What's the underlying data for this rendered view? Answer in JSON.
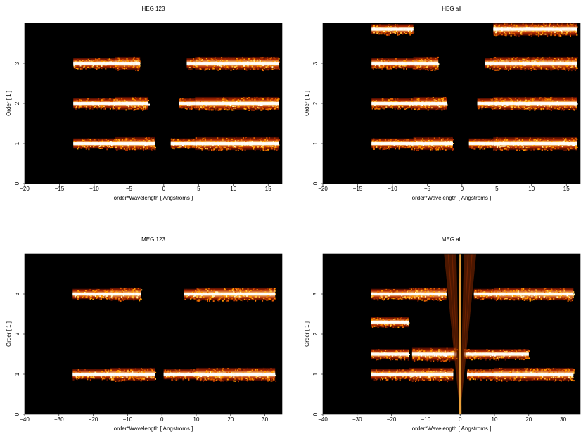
{
  "chart_data": [
    {
      "type": "heatmap",
      "title": "HEG 123",
      "xlabel": "order*Wavelength [ Angstroms ]",
      "ylabel": "Order [ 1 ]",
      "xlim": [
        -20,
        17
      ],
      "ylim": [
        0,
        4
      ],
      "xticks": [
        -20,
        -15,
        -10,
        -5,
        0,
        5,
        10,
        15
      ],
      "yticks": [
        0,
        1,
        2,
        3
      ],
      "bands": [
        {
          "order": 1,
          "segments": [
            [
              -13,
              -7
            ],
            [
              -7,
              -1.3
            ],
            [
              1,
              4.5
            ],
            [
              4.5,
              16.5
            ]
          ]
        },
        {
          "order": 2,
          "segments": [
            [
              -13,
              -7
            ],
            [
              -7,
              -2.2
            ],
            [
              2.2,
              4.5
            ],
            [
              4.5,
              16.5
            ]
          ]
        },
        {
          "order": 3,
          "segments": [
            [
              -13,
              -7
            ],
            [
              -7,
              -3.4
            ],
            [
              3.3,
              4.5
            ],
            [
              4.5,
              16.5
            ]
          ]
        }
      ]
    },
    {
      "type": "heatmap",
      "title": "HEG all",
      "xlabel": "order*Wavelength [ Angstroms ]",
      "ylabel": "Order [ 1 ]",
      "xlim": [
        -20,
        17
      ],
      "ylim": [
        0,
        4
      ],
      "xticks": [
        -20,
        -15,
        -10,
        -5,
        0,
        5,
        10,
        15
      ],
      "yticks": [
        0,
        1,
        2,
        3
      ],
      "bands": [
        {
          "order": 1,
          "segments": [
            [
              -13,
              -7
            ],
            [
              -7,
              -1.3
            ],
            [
              1,
              4.5
            ],
            [
              4.5,
              16.5
            ]
          ]
        },
        {
          "order": 2,
          "segments": [
            [
              -13,
              -7
            ],
            [
              -7,
              -2.2
            ],
            [
              2.2,
              4.5
            ],
            [
              4.5,
              16.5
            ]
          ]
        },
        {
          "order": 3,
          "segments": [
            [
              -13,
              -7
            ],
            [
              -7,
              -3.4
            ],
            [
              3.3,
              4.5
            ],
            [
              4.5,
              16.5
            ]
          ]
        },
        {
          "order": 3.85,
          "segments": [
            [
              -13,
              -7
            ],
            [
              4.5,
              16.5
            ]
          ]
        }
      ]
    },
    {
      "type": "heatmap",
      "title": "MEG 123",
      "xlabel": "order*Wavelength [ Angstroms ]",
      "ylabel": "Order [ 1 ]",
      "xlim": [
        -40,
        35
      ],
      "ylim": [
        0,
        4
      ],
      "xticks": [
        -40,
        -30,
        -20,
        -10,
        0,
        10,
        20,
        30
      ],
      "yticks": [
        0,
        1,
        2,
        3
      ],
      "bands": [
        {
          "order": 1,
          "segments": [
            [
              -26,
              -15
            ],
            [
              -15,
              -2
            ],
            [
              0.5,
              10
            ],
            [
              10,
              33
            ]
          ]
        },
        {
          "order": 3,
          "segments": [
            [
              -26,
              -15
            ],
            [
              -15,
              -6
            ],
            [
              6.5,
              10
            ],
            [
              10,
              33
            ]
          ]
        }
      ]
    },
    {
      "type": "heatmap",
      "title": "MEG all",
      "xlabel": "order*Wavelength [ Angstroms ]",
      "ylabel": "Order [ 1 ]",
      "xlim": [
        -40,
        35
      ],
      "ylim": [
        0,
        4
      ],
      "xticks": [
        -40,
        -30,
        -20,
        -10,
        0,
        10,
        20,
        30
      ],
      "yticks": [
        0,
        1,
        2,
        3
      ],
      "bands": [
        {
          "order": 1,
          "segments": [
            [
              -26,
              -15
            ],
            [
              -15,
              -2
            ],
            [
              2,
              10
            ],
            [
              10,
              33
            ]
          ]
        },
        {
          "order": 3,
          "segments": [
            [
              -26,
              -15
            ],
            [
              -15,
              -4
            ],
            [
              4,
              10
            ],
            [
              10,
              33
            ]
          ]
        },
        {
          "order": 1.5,
          "segments": [
            [
              -26,
              -15
            ],
            [
              -14,
              -1
            ],
            [
              1,
              20
            ]
          ]
        },
        {
          "order": 2.3,
          "segments": [
            [
              -26,
              -15
            ]
          ]
        }
      ]
    }
  ]
}
